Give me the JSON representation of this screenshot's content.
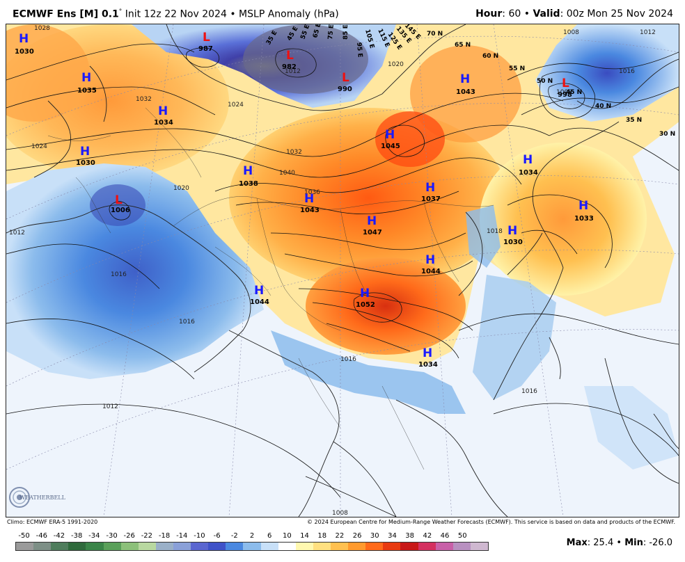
{
  "header": {
    "model": "ECMWF Ens [M] 0.1",
    "degree": "°",
    "init": "Init 12z 22 Nov 2024",
    "bullet": "•",
    "product": "MSLP Anomaly (hPa)",
    "hour_label": "Hour",
    "hour_value": ": 60",
    "valid_label": "Valid",
    "valid_value": ": 00z Mon 25 Nov 2024"
  },
  "footer": {
    "climo": "Climo: ECMWF ERA-5 1991-2020",
    "copyright": "© 2024 European Centre for Medium-Range Weather Forecasts (ECMWF). This service is based on data and products of the ECMWF."
  },
  "stats": {
    "max_label": "Max",
    "max_value": ": 25.4",
    "min_label": "Min",
    "min_value": ": -26.0",
    "bullet": "•"
  },
  "logo_text": "WEATHERBELL",
  "scale": {
    "labels": [
      "-50",
      "-46",
      "-42",
      "-38",
      "-34",
      "-30",
      "-26",
      "-22",
      "-18",
      "-14",
      "-10",
      "-6",
      "-2",
      "2",
      "6",
      "10",
      "14",
      "18",
      "22",
      "26",
      "30",
      "34",
      "38",
      "42",
      "46",
      "50"
    ],
    "colors": [
      "#9a9a9a",
      "#7d8f86",
      "#4f7d5c",
      "#2f6a3c",
      "#3a8448",
      "#5aa05a",
      "#8cc07a",
      "#b8d8a0",
      "#9ab0c8",
      "#8aa0d8",
      "#5a66d0",
      "#3f52c8",
      "#4a88e0",
      "#8cbcec",
      "#c8e0f8",
      "#ffffff",
      "#fff8b0",
      "#ffe080",
      "#ffc050",
      "#ff9a2e",
      "#ff6a1a",
      "#e83a10",
      "#c81818",
      "#d43060",
      "#c860a8",
      "#b890c0",
      "#cfb8d0"
    ]
  },
  "map": {
    "highs": [
      {
        "label": "H",
        "value": "1030"
      },
      {
        "label": "H",
        "value": "1035"
      },
      {
        "label": "H",
        "value": "1034"
      },
      {
        "label": "H",
        "value": "1030"
      },
      {
        "label": "H",
        "value": "1038"
      },
      {
        "label": "H",
        "value": "1043"
      },
      {
        "label": "H",
        "value": "1045"
      },
      {
        "label": "H",
        "value": "1037"
      },
      {
        "label": "H",
        "value": "1047"
      },
      {
        "label": "H",
        "value": "1043"
      },
      {
        "label": "H",
        "value": "1034"
      },
      {
        "label": "H",
        "value": "1033"
      },
      {
        "label": "H",
        "value": "1030"
      },
      {
        "label": "H",
        "value": "1044"
      },
      {
        "label": "H",
        "value": "1044"
      },
      {
        "label": "H",
        "value": "1052"
      },
      {
        "label": "H",
        "value": "1034"
      }
    ],
    "lows": [
      {
        "label": "L",
        "value": "987"
      },
      {
        "label": "L",
        "value": "982"
      },
      {
        "label": "L",
        "value": "990"
      },
      {
        "label": "L",
        "value": "998"
      },
      {
        "label": "L",
        "value": "1006"
      }
    ],
    "lat_labels": [
      "70 N",
      "65 N",
      "60 N",
      "55 N",
      "50 N",
      "45 N",
      "40 N",
      "35 N",
      "30 N"
    ],
    "lon_labels": [
      "35 E",
      "45 E",
      "55 E",
      "65 E",
      "75 E",
      "85 E",
      "95 E",
      "105 E",
      "115 E",
      "125 E",
      "135 E",
      "145 E"
    ],
    "isobars": [
      "1028",
      "1024",
      "1032",
      "1040",
      "1036",
      "1016",
      "1012",
      "1020",
      "1024",
      "1032",
      "1008",
      "1012",
      "1016",
      "1018",
      "1012",
      "1008",
      "1016",
      "1020",
      "1012",
      "1008",
      "1016",
      "1016"
    ]
  }
}
